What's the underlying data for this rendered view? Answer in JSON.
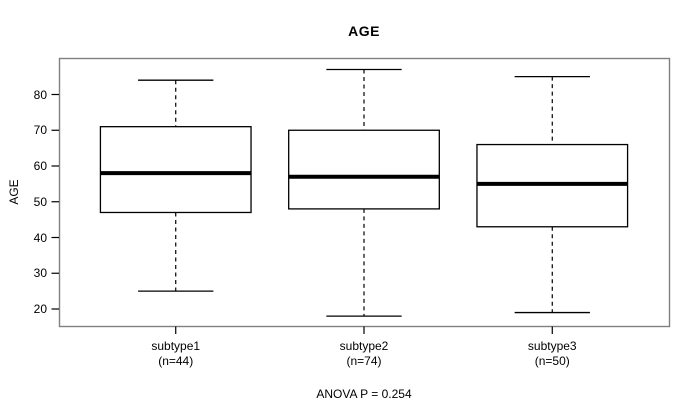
{
  "title": "AGE",
  "y_axis_label": "AGE",
  "footer_annotation": "ANOVA P = 0.254",
  "colors": {
    "frame": "#808080",
    "box_stroke": "#000000",
    "box_fill": "#ffffff",
    "text": "#000000",
    "background": "#ffffff"
  },
  "chart_data": {
    "type": "boxplot",
    "title": "AGE",
    "xlabel": "",
    "ylabel": "AGE",
    "annotation": "ANOVA P = 0.254",
    "grid": false,
    "legend": "none",
    "yticks": [
      20,
      30,
      40,
      50,
      60,
      70,
      80
    ],
    "ylim": [
      17,
      89
    ],
    "categories": [
      "subtype1",
      "subtype2",
      "subtype3"
    ],
    "category_sublabels": [
      "(n=44)",
      "(n=74)",
      "(n=50)"
    ],
    "series": [
      {
        "name": "subtype1",
        "n": 44,
        "whisker_low": 25,
        "q1": 47,
        "median": 58,
        "q3": 71,
        "whisker_high": 84,
        "outliers": []
      },
      {
        "name": "subtype2",
        "n": 74,
        "whisker_low": 18,
        "q1": 48,
        "median": 57,
        "q3": 70,
        "whisker_high": 87,
        "outliers": []
      },
      {
        "name": "subtype3",
        "n": 50,
        "whisker_low": 19,
        "q1": 43,
        "median": 55,
        "q3": 66,
        "whisker_high": 85,
        "outliers": []
      }
    ]
  }
}
